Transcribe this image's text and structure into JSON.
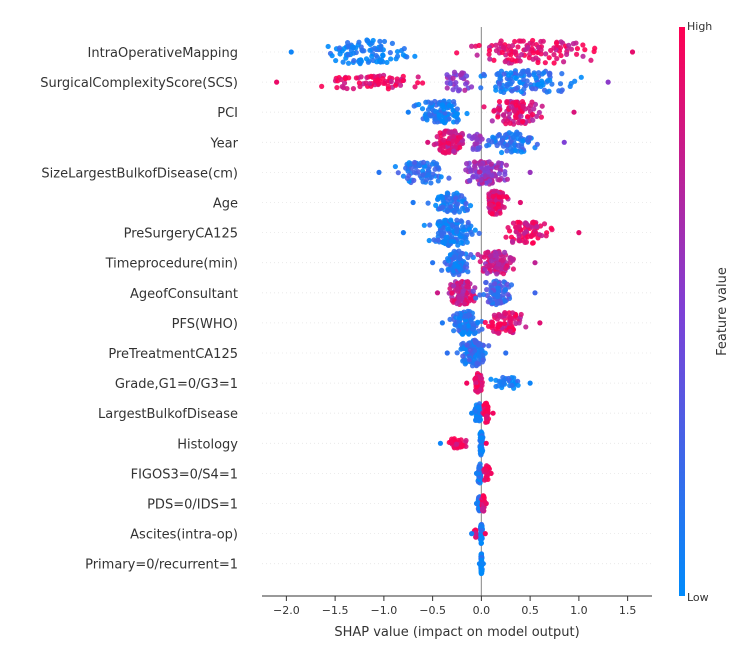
{
  "chart_data": {
    "type": "scatter",
    "subtype": "shap-beeswarm",
    "title": "",
    "xlabel": "SHAP value (impact on model output)",
    "ylabel": "",
    "xlim": [
      -2.25,
      1.75
    ],
    "xticks": [
      -2.0,
      -1.5,
      -1.0,
      -0.5,
      0.0,
      0.5,
      1.0,
      1.5
    ],
    "xtick_labels": [
      "−2.0",
      "−1.5",
      "−1.0",
      "−0.5",
      "0.0",
      "0.5",
      "1.0",
      "1.5"
    ],
    "colorbar": {
      "label": "Feature value",
      "high_label": "High",
      "low_label": "Low",
      "high_color": "#ff0052",
      "low_color": "#008bfb"
    },
    "features": [
      {
        "name": "IntraOperativeMapping",
        "min": -1.95,
        "max": 1.55,
        "clusters": [
          {
            "c": -1.2,
            "w": 0.75,
            "n": 95,
            "fv": 0.05,
            "h": 12
          },
          {
            "c": 0.5,
            "w": 1.0,
            "n": 115,
            "fv": 0.9,
            "h": 12
          }
        ]
      },
      {
        "name": "SurgicalComplexityScore(SCS)",
        "min": -2.1,
        "max": 1.3,
        "clusters": [
          {
            "c": -1.15,
            "w": 0.95,
            "n": 70,
            "fv": 0.92,
            "h": 7
          },
          {
            "c": 0.45,
            "w": 0.8,
            "n": 110,
            "fv": 0.12,
            "h": 12
          },
          {
            "c": -0.25,
            "w": 0.3,
            "n": 30,
            "fv": 0.55,
            "h": 10
          }
        ]
      },
      {
        "name": "PCI",
        "min": -0.75,
        "max": 0.95,
        "clusters": [
          {
            "c": -0.4,
            "w": 0.38,
            "n": 100,
            "fv": 0.08,
            "h": 12
          },
          {
            "c": 0.35,
            "w": 0.45,
            "n": 95,
            "fv": 0.85,
            "h": 12
          }
        ]
      },
      {
        "name": "Year",
        "min": -0.55,
        "max": 0.85,
        "clusters": [
          {
            "c": -0.32,
            "w": 0.22,
            "n": 95,
            "fv": 0.85,
            "h": 12
          },
          {
            "c": 0.3,
            "w": 0.4,
            "n": 75,
            "fv": 0.12,
            "h": 11
          },
          {
            "c": -0.05,
            "w": 0.15,
            "n": 20,
            "fv": 0.5,
            "h": 9
          }
        ]
      },
      {
        "name": "SizeLargestBulkofDisease(cm)",
        "min": -1.05,
        "max": 0.5,
        "clusters": [
          {
            "c": -0.6,
            "w": 0.4,
            "n": 70,
            "fv": 0.15,
            "h": 11
          },
          {
            "c": 0.05,
            "w": 0.35,
            "n": 110,
            "fv": 0.6,
            "h": 12
          }
        ]
      },
      {
        "name": "Age",
        "min": -0.7,
        "max": 0.4,
        "clusters": [
          {
            "c": -0.3,
            "w": 0.3,
            "n": 70,
            "fv": 0.12,
            "h": 10
          },
          {
            "c": 0.15,
            "w": 0.15,
            "n": 100,
            "fv": 0.88,
            "h": 12
          }
        ]
      },
      {
        "name": "PreSurgeryCA125",
        "min": -0.8,
        "max": 1.0,
        "clusters": [
          {
            "c": -0.3,
            "w": 0.35,
            "n": 130,
            "fv": 0.1,
            "h": 13
          },
          {
            "c": 0.45,
            "w": 0.4,
            "n": 75,
            "fv": 0.9,
            "h": 11
          }
        ]
      },
      {
        "name": "Timeprocedure(min)",
        "min": -0.5,
        "max": 0.55,
        "clusters": [
          {
            "c": -0.25,
            "w": 0.22,
            "n": 85,
            "fv": 0.15,
            "h": 12
          },
          {
            "c": 0.15,
            "w": 0.28,
            "n": 95,
            "fv": 0.75,
            "h": 12
          }
        ]
      },
      {
        "name": "AgeofConsultant",
        "min": -0.45,
        "max": 0.55,
        "clusters": [
          {
            "c": -0.2,
            "w": 0.22,
            "n": 95,
            "fv": 0.8,
            "h": 12
          },
          {
            "c": 0.15,
            "w": 0.28,
            "n": 85,
            "fv": 0.25,
            "h": 12
          }
        ]
      },
      {
        "name": "PFS(WHO)",
        "min": -0.4,
        "max": 0.6,
        "clusters": [
          {
            "c": -0.15,
            "w": 0.22,
            "n": 90,
            "fv": 0.12,
            "h": 12
          },
          {
            "c": 0.25,
            "w": 0.3,
            "n": 75,
            "fv": 0.88,
            "h": 11
          }
        ]
      },
      {
        "name": "PreTreatmentCA125",
        "min": -0.35,
        "max": 0.25,
        "clusters": [
          {
            "c": -0.08,
            "w": 0.2,
            "n": 120,
            "fv": 0.18,
            "h": 13
          }
        ]
      },
      {
        "name": "Grade,G1=0/G3=1",
        "min": -0.15,
        "max": 0.5,
        "clusters": [
          {
            "c": -0.03,
            "w": 0.06,
            "n": 55,
            "fv": 0.95,
            "h": 10
          },
          {
            "c": 0.25,
            "w": 0.22,
            "n": 30,
            "fv": 0.05,
            "h": 6
          }
        ]
      },
      {
        "name": "LargestBulkofDisease",
        "min": -0.1,
        "max": 0.12,
        "clusters": [
          {
            "c": -0.03,
            "w": 0.05,
            "n": 50,
            "fv": 0.05,
            "h": 10
          },
          {
            "c": 0.05,
            "w": 0.05,
            "n": 45,
            "fv": 0.95,
            "h": 10
          }
        ]
      },
      {
        "name": "Histology",
        "min": -0.42,
        "max": 0.05,
        "clusters": [
          {
            "c": 0.0,
            "w": 0.025,
            "n": 60,
            "fv": 0.05,
            "h": 12
          },
          {
            "c": -0.25,
            "w": 0.15,
            "n": 35,
            "fv": 0.95,
            "h": 5
          }
        ]
      },
      {
        "name": "FIGOS3=0/S4=1",
        "min": -0.05,
        "max": 0.1,
        "clusters": [
          {
            "c": -0.02,
            "w": 0.03,
            "n": 55,
            "fv": 0.08,
            "h": 10
          },
          {
            "c": 0.05,
            "w": 0.05,
            "n": 30,
            "fv": 0.95,
            "h": 8
          }
        ]
      },
      {
        "name": "PDS=0/IDS=1",
        "min": -0.05,
        "max": 0.05,
        "clusters": [
          {
            "c": -0.02,
            "w": 0.025,
            "n": 45,
            "fv": 0.08,
            "h": 8
          },
          {
            "c": 0.02,
            "w": 0.025,
            "n": 40,
            "fv": 0.92,
            "h": 8
          }
        ]
      },
      {
        "name": "Ascites(intra-op)",
        "min": -0.1,
        "max": 0.04,
        "clusters": [
          {
            "c": 0.0,
            "w": 0.02,
            "n": 55,
            "fv": 0.08,
            "h": 10
          },
          {
            "c": -0.06,
            "w": 0.03,
            "n": 12,
            "fv": 0.95,
            "h": 4
          }
        ]
      },
      {
        "name": "Primary=0/recurrent=1",
        "min": -0.02,
        "max": 0.02,
        "clusters": [
          {
            "c": 0.0,
            "w": 0.012,
            "n": 50,
            "fv": 0.05,
            "h": 10
          }
        ]
      }
    ]
  }
}
